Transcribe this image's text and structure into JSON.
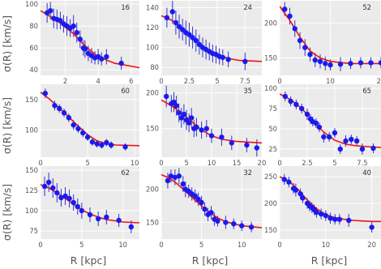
{
  "figure": {
    "xlabel": "R [kpc]",
    "ylabel": "σ(R) [km/s]"
  },
  "colors": {
    "data_point": "#1a1aee",
    "error_bar": "#3333cc",
    "fit_curve": "#ee1111",
    "panel_background": "#ebebeb",
    "grid": "#ffffff"
  },
  "chart_data": [
    {
      "type": "scatter",
      "id": "16",
      "xlim": [
        0.5,
        6.5
      ],
      "ylim": [
        35,
        103
      ],
      "xticks": [
        2,
        4,
        6
      ],
      "yticks": [
        40,
        60,
        80,
        100
      ],
      "xlabel": "",
      "ylabel": "σ(R) [km/s]",
      "x": [
        0.9,
        1.1,
        1.3,
        1.5,
        1.7,
        1.9,
        2.1,
        2.3,
        2.5,
        2.7,
        2.9,
        3.1,
        3.2,
        3.4,
        3.6,
        3.8,
        4.0,
        4.2,
        4.5,
        5.4
      ],
      "y": [
        92,
        94,
        87,
        86,
        85,
        82,
        80,
        78,
        80,
        74,
        68,
        60,
        59,
        55,
        53,
        51,
        52,
        50,
        52,
        46
      ],
      "error": [
        9,
        8,
        9,
        9,
        8,
        8,
        9,
        8,
        10,
        9,
        8,
        7,
        8,
        7,
        7,
        6,
        7,
        6,
        7,
        6
      ],
      "fit": {
        "x": [
          0.5,
          1.5,
          2.5,
          3,
          3.5,
          4,
          5,
          6.5
        ],
        "y": [
          94,
          85,
          73,
          65,
          58,
          52,
          46,
          42
        ]
      }
    },
    {
      "type": "scatter",
      "id": "24",
      "xlim": [
        0,
        9
      ],
      "ylim": [
        72,
        147
      ],
      "xticks": [
        0,
        2.5,
        5,
        7.5
      ],
      "yticks": [
        80,
        100,
        120,
        140
      ],
      "xlabel": "",
      "ylabel": "",
      "x": [
        0.5,
        1,
        1.3,
        1.6,
        1.9,
        2.2,
        2.5,
        2.8,
        3.1,
        3.4,
        3.7,
        4,
        4.3,
        4.6,
        4.9,
        5.2,
        5.5,
        6,
        7.5
      ],
      "y": [
        130,
        136,
        125,
        121,
        118,
        115,
        113,
        110,
        107,
        103,
        100,
        98,
        96,
        94,
        93,
        91,
        90,
        88,
        86
      ],
      "error": [
        10,
        12,
        12,
        12,
        11,
        12,
        12,
        11,
        11,
        10,
        10,
        10,
        9,
        9,
        9,
        8,
        8,
        8,
        9
      ],
      "fit": {
        "x": [
          0,
          1,
          2,
          3,
          4,
          5,
          6,
          7,
          9
        ],
        "y": [
          132,
          127,
          118,
          108,
          99,
          93,
          89,
          87,
          86
        ]
      }
    },
    {
      "type": "scatter",
      "id": "52",
      "xlim": [
        0,
        20
      ],
      "ylim": [
        125,
        232
      ],
      "xticks": [
        0,
        10,
        20
      ],
      "yticks": [
        150,
        200
      ],
      "xlabel": "",
      "ylabel": "",
      "x": [
        1,
        2,
        3,
        4,
        5,
        6,
        7,
        8,
        9,
        10,
        12,
        14,
        16,
        18,
        20
      ],
      "y": [
        220,
        210,
        192,
        175,
        165,
        155,
        147,
        145,
        142,
        140,
        141,
        142,
        143,
        143,
        143
      ],
      "error": [
        10,
        12,
        12,
        12,
        12,
        10,
        10,
        10,
        10,
        8,
        10,
        8,
        8,
        8,
        8
      ],
      "fit": {
        "x": [
          0,
          2,
          4,
          6,
          8,
          10,
          14,
          20
        ],
        "y": [
          224,
          204,
          180,
          160,
          150,
          145,
          142,
          142
        ]
      }
    },
    {
      "type": "scatter",
      "id": "60",
      "xlim": [
        0,
        10.5
      ],
      "ylim": [
        55,
        175
      ],
      "xticks": [
        0,
        5,
        10
      ],
      "yticks": [
        100,
        150
      ],
      "xlabel": "",
      "ylabel": "σ(R) [km/s]",
      "x": [
        0.5,
        1.5,
        2,
        2.5,
        3,
        3.5,
        4,
        4.5,
        5,
        5.5,
        6,
        6.5,
        7,
        7.5,
        9
      ],
      "y": [
        160,
        140,
        135,
        128,
        120,
        108,
        102,
        95,
        88,
        80,
        77,
        75,
        79,
        75,
        72
      ],
      "error": [
        8,
        8,
        7,
        7,
        7,
        8,
        7,
        7,
        6,
        6,
        6,
        6,
        6,
        6,
        6
      ],
      "fit": {
        "x": [
          0,
          1,
          2,
          3,
          4,
          5,
          6,
          7,
          8,
          10.5
        ],
        "y": [
          162,
          150,
          136,
          121,
          106,
          92,
          82,
          77,
          75,
          74
        ]
      }
    },
    {
      "type": "scatter",
      "id": "35",
      "xlim": [
        0,
        20
      ],
      "ylim": [
        110,
        212
      ],
      "xticks": [
        0,
        5,
        10,
        15,
        20
      ],
      "yticks": [
        150,
        200
      ],
      "xlabel": "",
      "ylabel": "",
      "x": [
        1,
        2,
        2.5,
        3,
        3.5,
        4,
        4.5,
        5,
        5.5,
        6,
        6.5,
        7,
        8,
        9,
        10,
        12,
        14,
        17,
        19
      ],
      "y": [
        195,
        185,
        187,
        182,
        172,
        165,
        170,
        162,
        158,
        165,
        150,
        152,
        148,
        150,
        140,
        138,
        130,
        127,
        123
      ],
      "error": [
        15,
        12,
        14,
        14,
        13,
        14,
        14,
        14,
        13,
        14,
        12,
        13,
        12,
        12,
        10,
        12,
        10,
        10,
        12
      ],
      "fit": {
        "x": [
          0,
          2,
          4,
          6,
          8,
          10,
          12,
          15,
          20
        ],
        "y": [
          190,
          182,
          172,
          160,
          148,
          140,
          135,
          132,
          130
        ]
      }
    },
    {
      "type": "scatter",
      "id": "65",
      "xlim": [
        0,
        9.2
      ],
      "ylim": [
        15,
        105
      ],
      "xticks": [
        0,
        2.5,
        5,
        7.5
      ],
      "yticks": [
        25,
        50,
        75,
        100
      ],
      "xlabel": "",
      "ylabel": "",
      "x": [
        0.5,
        1,
        1.5,
        2,
        2.5,
        2.8,
        3,
        3.3,
        3.6,
        4,
        4.5,
        5,
        5.5,
        6,
        6.5,
        7,
        7.5,
        8.5
      ],
      "y": [
        90,
        84,
        80,
        75,
        68,
        62,
        59,
        57,
        52,
        40,
        40,
        45,
        25,
        35,
        37,
        35,
        25,
        26
      ],
      "error": [
        6,
        6,
        6,
        6,
        7,
        6,
        6,
        6,
        6,
        7,
        6,
        6,
        6,
        7,
        6,
        6,
        7,
        6
      ],
      "fit": {
        "x": [
          0,
          1,
          2,
          3,
          4,
          5,
          6,
          7,
          8,
          9.2
        ],
        "y": [
          93,
          86,
          75,
          60,
          46,
          36,
          31,
          29,
          28,
          27
        ]
      }
    },
    {
      "type": "scatter",
      "id": "62",
      "xlim": [
        0,
        12
      ],
      "ylim": [
        65,
        155
      ],
      "xticks": [
        0,
        5,
        10
      ],
      "yticks": [
        75,
        100,
        125,
        150
      ],
      "xlabel": "R [kpc]",
      "ylabel": "σ(R) [km/s]",
      "x": [
        0.5,
        1,
        1.5,
        2,
        2.5,
        3,
        3.5,
        4,
        4.5,
        5,
        6,
        7,
        8,
        9.5,
        11
      ],
      "y": [
        130,
        135,
        128,
        122,
        116,
        118,
        115,
        110,
        105,
        100,
        95,
        90,
        92,
        88,
        80
      ],
      "error": [
        12,
        12,
        12,
        12,
        11,
        11,
        11,
        10,
        10,
        10,
        9,
        9,
        9,
        8,
        8
      ],
      "fit": {
        "x": [
          0,
          1,
          2,
          3,
          4,
          5,
          6,
          7,
          8,
          10,
          12
        ],
        "y": [
          132,
          128,
          122,
          115,
          108,
          101,
          96,
          92,
          89,
          86,
          85
        ]
      }
    },
    {
      "type": "scatter",
      "id": "32",
      "xlim": [
        0,
        12.5
      ],
      "ylim": [
        125,
        235
      ],
      "xticks": [
        0,
        5,
        10
      ],
      "yticks": [
        150,
        200
      ],
      "xlabel": "R [kpc]",
      "ylabel": "",
      "x": [
        0.8,
        1.2,
        1.7,
        2.2,
        2.7,
        3,
        3.4,
        3.8,
        4.2,
        4.6,
        5,
        5.4,
        5.8,
        6.2,
        6.6,
        7,
        8,
        9,
        10,
        11.2
      ],
      "y": [
        213,
        220,
        218,
        220,
        208,
        200,
        197,
        193,
        190,
        185,
        180,
        170,
        162,
        165,
        155,
        152,
        150,
        148,
        145,
        143
      ],
      "error": [
        12,
        10,
        12,
        12,
        12,
        12,
        10,
        10,
        10,
        10,
        10,
        10,
        10,
        10,
        10,
        8,
        10,
        8,
        8,
        8
      ],
      "fit": {
        "x": [
          0,
          1,
          2,
          3,
          4,
          5,
          6,
          7,
          8,
          10,
          12.5
        ],
        "y": [
          222,
          217,
          208,
          197,
          186,
          175,
          165,
          157,
          151,
          145,
          142
        ]
      }
    },
    {
      "type": "scatter",
      "id": "40",
      "xlim": [
        0,
        22
      ],
      "ylim": [
        133,
        270
      ],
      "xticks": [
        0,
        10,
        20
      ],
      "yticks": [
        150,
        200,
        250
      ],
      "xlabel": "R [kpc]",
      "ylabel": "",
      "x": [
        1,
        2,
        3,
        3.5,
        4.5,
        5,
        6,
        6.5,
        7,
        7.5,
        8,
        9,
        10,
        11,
        12,
        13,
        15,
        20
      ],
      "y": [
        245,
        240,
        228,
        225,
        218,
        210,
        200,
        195,
        192,
        188,
        183,
        180,
        177,
        172,
        170,
        170,
        168,
        155
      ],
      "error": [
        10,
        10,
        10,
        12,
        10,
        10,
        10,
        10,
        10,
        10,
        10,
        10,
        10,
        10,
        10,
        10,
        12,
        10
      ],
      "fit": {
        "x": [
          0,
          2,
          4,
          6,
          8,
          10,
          12,
          14,
          16,
          18,
          20,
          22
        ],
        "y": [
          250,
          242,
          226,
          206,
          190,
          179,
          173,
          170,
          168,
          167,
          166,
          166
        ]
      }
    }
  ]
}
